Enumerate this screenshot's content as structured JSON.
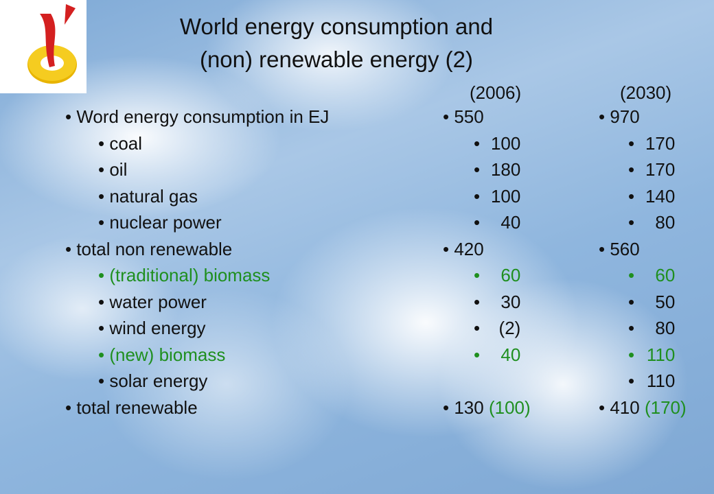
{
  "title": [
    "World energy consumption and",
    "(non) renewable energy (2)"
  ],
  "columns": [
    "(2006)",
    "(2030)"
  ],
  "highlight_color": "#1f8f1f",
  "rows": [
    {
      "label": "Word energy consumption in EJ",
      "level": 0,
      "v2006": "550",
      "v2030": "970"
    },
    {
      "label": "coal",
      "level": 1,
      "v2006": "100",
      "v2030": "170"
    },
    {
      "label": "oil",
      "level": 1,
      "v2006": "180",
      "v2030": "170"
    },
    {
      "label": "natural gas",
      "level": 1,
      "v2006": "100",
      "v2030": "140"
    },
    {
      "label": "nuclear power",
      "level": 1,
      "v2006": "40",
      "v2030": "80"
    },
    {
      "label": "total non renewable",
      "level": 0,
      "v2006": "420",
      "v2030": "560"
    },
    {
      "label": "(traditional) biomass",
      "level": 1,
      "highlight": true,
      "v2006": "60",
      "v2030": "60"
    },
    {
      "label": "water power",
      "level": 1,
      "v2006": "30",
      "v2030": "50"
    },
    {
      "label": "wind energy",
      "level": 1,
      "v2006": "(2)",
      "v2030": "80"
    },
    {
      "label": "(new) biomass",
      "level": 1,
      "highlight": true,
      "v2006": "40",
      "v2030": "110"
    },
    {
      "label": "solar energy",
      "level": 1,
      "v2006": null,
      "v2030": "110"
    },
    {
      "label": "total renewable",
      "level": 0,
      "v2006": "130",
      "v2006_note": "(100)",
      "v2030": "410",
      "v2030_note": "(170)"
    }
  ]
}
